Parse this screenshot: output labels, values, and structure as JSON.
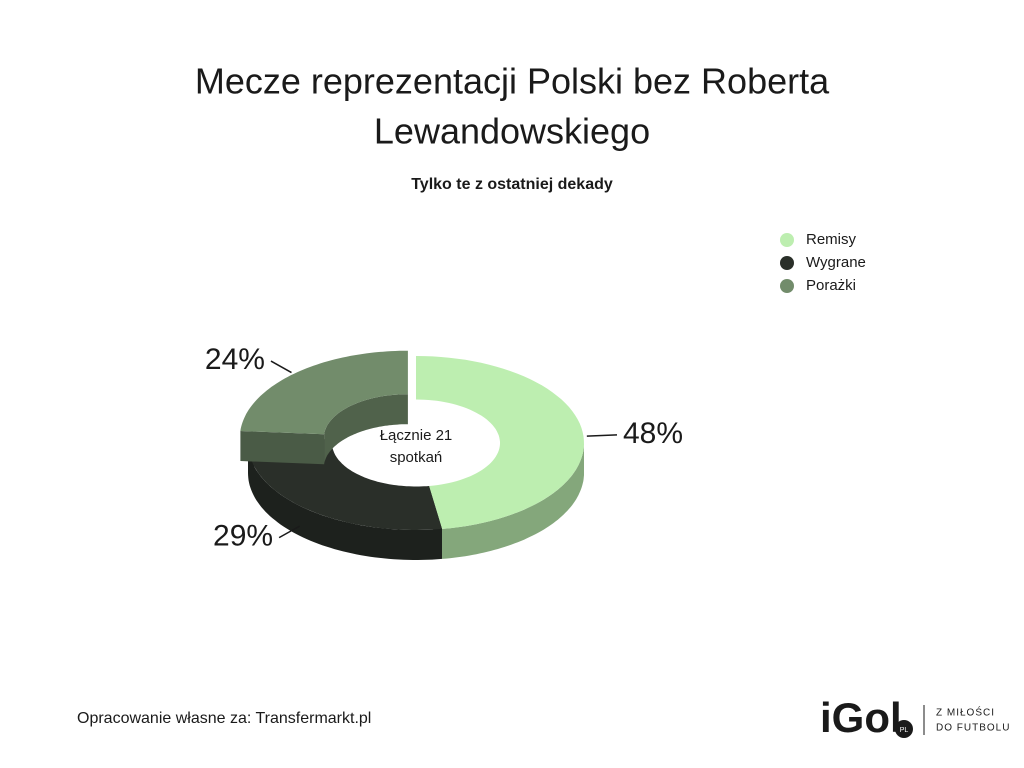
{
  "chart_data": {
    "type": "donut",
    "title": [
      "Mecze reprezentacji Polski bez Roberta",
      "Lewandowskiego"
    ],
    "subtitle": "Tylko te z ostatniej dekady",
    "categories": [
      "Remisy",
      "Wygrane",
      "Porażki"
    ],
    "values": [
      48,
      29,
      24
    ],
    "value_labels": [
      "48%",
      "29%",
      "24%"
    ],
    "colors": [
      "#bdeeb0",
      "#2a2f29",
      "#728c6b"
    ],
    "center_label": [
      "Łącznie 21",
      "spotkań"
    ],
    "legend": "top-right"
  },
  "footer": {
    "source": "Opracowanie własne za: Transfermarkt.pl",
    "logo": "iGol",
    "logo_badge": "PL",
    "tagline": [
      "Z MIŁOŚCI",
      "DO FUTBOLU"
    ]
  }
}
